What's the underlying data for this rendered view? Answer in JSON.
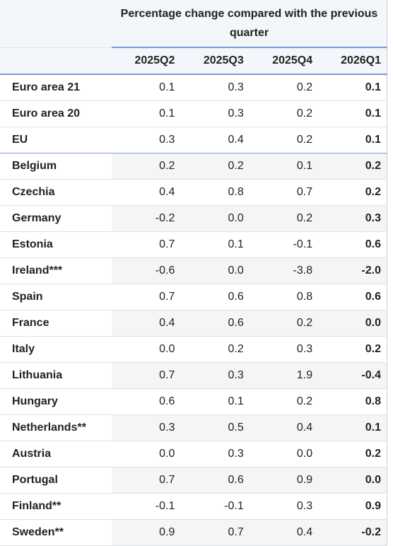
{
  "table": {
    "title": "Percentage change compared with the previous quarter",
    "columns": [
      "2025Q2",
      "2025Q3",
      "2025Q4",
      "2026Q1"
    ],
    "rows": [
      {
        "label": "Euro area 21",
        "values": [
          "0.1",
          "0.3",
          "0.2",
          "0.1"
        ]
      },
      {
        "label": "Euro area 20",
        "values": [
          "0.1",
          "0.3",
          "0.2",
          "0.1"
        ]
      },
      {
        "label": "EU",
        "values": [
          "0.3",
          "0.4",
          "0.2",
          "0.1"
        ]
      },
      {
        "label": "Belgium",
        "values": [
          "0.2",
          "0.2",
          "0.1",
          "0.2"
        ]
      },
      {
        "label": "Czechia",
        "values": [
          "0.4",
          "0.8",
          "0.7",
          "0.2"
        ]
      },
      {
        "label": "Germany",
        "values": [
          "-0.2",
          "0.0",
          "0.2",
          "0.3"
        ]
      },
      {
        "label": "Estonia",
        "values": [
          "0.7",
          "0.1",
          "-0.1",
          "0.6"
        ]
      },
      {
        "label": "Ireland***",
        "values": [
          "-0.6",
          "0.0",
          "-3.8",
          "-2.0"
        ]
      },
      {
        "label": "Spain",
        "values": [
          "0.7",
          "0.6",
          "0.8",
          "0.6"
        ]
      },
      {
        "label": "France",
        "values": [
          "0.4",
          "0.6",
          "0.2",
          "0.0"
        ]
      },
      {
        "label": "Italy",
        "values": [
          "0.0",
          "0.2",
          "0.3",
          "0.2"
        ]
      },
      {
        "label": "Lithuania",
        "values": [
          "0.7",
          "0.3",
          "1.9",
          "-0.4"
        ]
      },
      {
        "label": "Hungary",
        "values": [
          "0.6",
          "0.1",
          "0.2",
          "0.8"
        ]
      },
      {
        "label": "Netherlands**",
        "values": [
          "0.3",
          "0.5",
          "0.4",
          "0.1"
        ]
      },
      {
        "label": "Austria",
        "values": [
          "0.0",
          "0.3",
          "0.0",
          "0.2"
        ]
      },
      {
        "label": "Portugal",
        "values": [
          "0.7",
          "0.6",
          "0.9",
          "0.0"
        ]
      },
      {
        "label": "Finland**",
        "values": [
          "-0.1",
          "-0.1",
          "0.3",
          "0.9"
        ]
      },
      {
        "label": "Sweden**",
        "values": [
          "0.9",
          "0.7",
          "0.4",
          "-0.2"
        ]
      }
    ]
  }
}
